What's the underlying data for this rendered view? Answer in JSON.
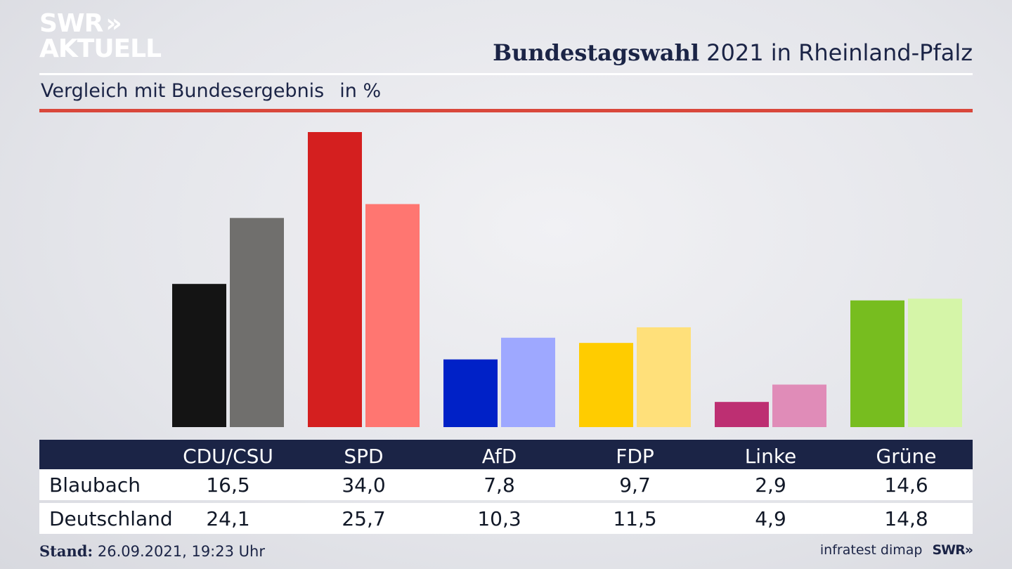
{
  "logo": {
    "line1": "SWR",
    "arrows": "»",
    "line2": "AKTUELL"
  },
  "header": {
    "title_bold": "Bundestagswahl",
    "title_rest": "2021 in Rheinland-Pfalz",
    "subtitle": "Vergleich mit Bundesergebnis",
    "unit": "in %"
  },
  "chart_data": {
    "type": "bar",
    "categories": [
      "CDU/CSU",
      "SPD",
      "AfD",
      "FDP",
      "Linke",
      "Grüne"
    ],
    "series": [
      {
        "name": "Blaubach",
        "values": [
          16.5,
          34.0,
          7.8,
          9.7,
          2.9,
          14.6
        ]
      },
      {
        "name": "Deutschland",
        "values": [
          24.1,
          25.7,
          10.3,
          11.5,
          4.9,
          14.8
        ]
      }
    ],
    "display_values": [
      [
        "16,5",
        "34,0",
        "7,8",
        "9,7",
        "2,9",
        "14,6"
      ],
      [
        "24,1",
        "25,7",
        "10,3",
        "11,5",
        "4,9",
        "14,8"
      ]
    ],
    "colors": {
      "primary": [
        "#141414",
        "#d41f1f",
        "#0021c7",
        "#ffcc00",
        "#bd2f72",
        "#77bd1f"
      ],
      "secondary": [
        "#706f6d",
        "#ff7671",
        "#9ea8ff",
        "#ffe07a",
        "#e08cb8",
        "#d5f5a8"
      ]
    },
    "ylim": [
      0,
      35
    ],
    "grid": false,
    "legend": "table-bottom"
  },
  "footer": {
    "stand_label": "Stand:",
    "stand_value": "26.09.2021, 19:23 Uhr",
    "source": "infratest dimap",
    "brand": "SWR»"
  }
}
